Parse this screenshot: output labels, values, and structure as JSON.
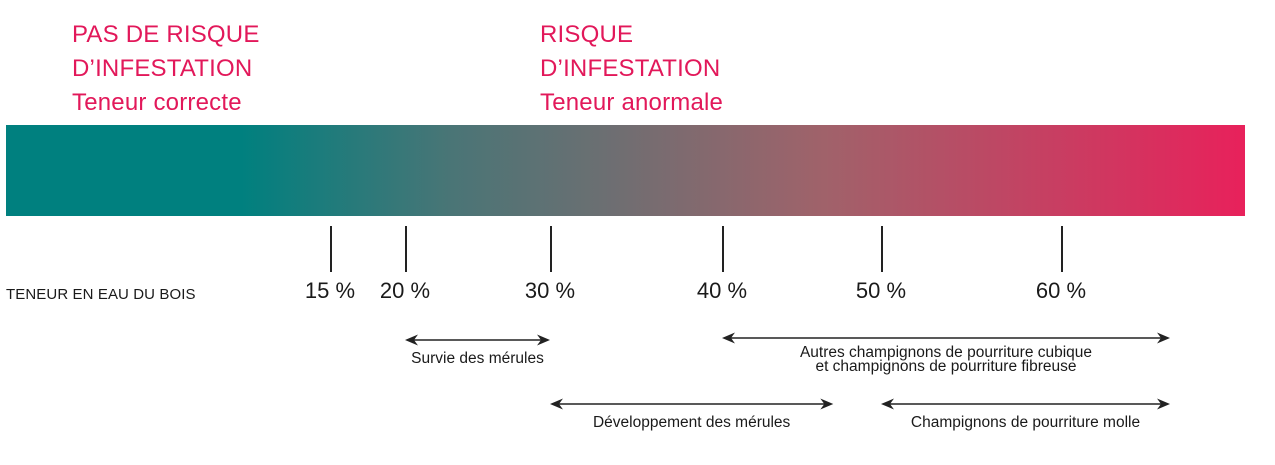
{
  "zones": {
    "safe": {
      "line1": "PAS DE RISQUE",
      "line2": "D’INFESTATION",
      "subtitle": "Teneur correcte",
      "title_color": "#e2185a",
      "subtitle_color": "#e2185a"
    },
    "risk": {
      "line1": "RISQUE",
      "line2": "D’INFESTATION",
      "subtitle": "Teneur anormale",
      "title_color": "#e2185a",
      "subtitle_color": "#e2185a"
    }
  },
  "gradient": {
    "start_color": "#00807f",
    "end_color": "#e8215b"
  },
  "axis": {
    "label": "TENEUR EN EAU DU BOIS",
    "ticks": [
      "15 %",
      "20 %",
      "30 %",
      "40 %",
      "50 %",
      "60 %"
    ],
    "tick_values": [
      15,
      20,
      30,
      40,
      50,
      60
    ]
  },
  "ranges": [
    {
      "label": "Survie des mérules",
      "from": 20,
      "to": 30
    },
    {
      "label": "Développement des mérules",
      "from": 30,
      "to": 47
    },
    {
      "label_line1": "Autres champignons de pourriture cubique",
      "label_line2": "et champignons de pourriture fibreuse",
      "from": 40,
      "to": 68
    },
    {
      "label": "Champignons de pourriture molle",
      "from": 50,
      "to": 68
    }
  ]
}
